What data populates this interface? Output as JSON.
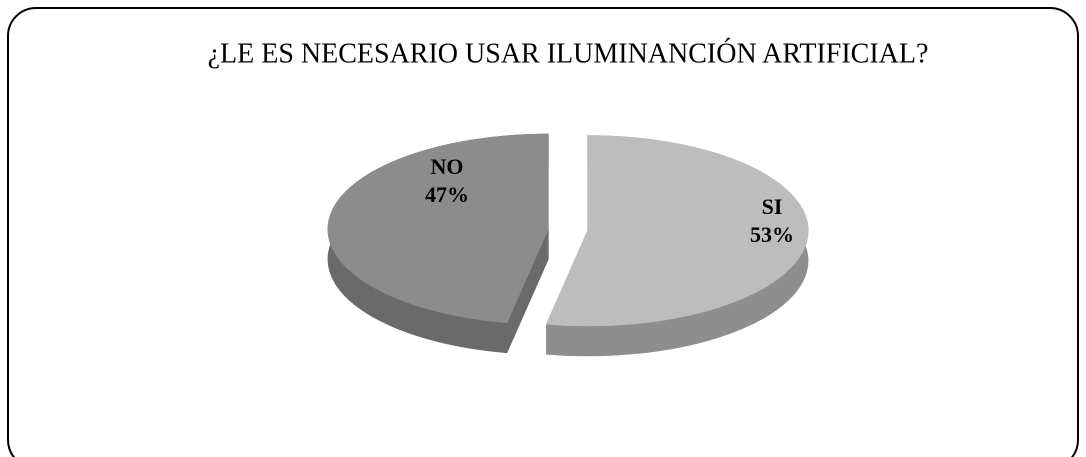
{
  "chart_data": {
    "type": "pie",
    "title": "¿LE ES NECESARIO USAR ILUMINANCIÓN ARTIFICIAL?",
    "categories": [
      "SI",
      "NO"
    ],
    "values": [
      53,
      47
    ],
    "value_labels": [
      "53%",
      "47%"
    ],
    "colors": [
      "#bdbdbd",
      "#8c8c8c"
    ],
    "side_colors": [
      "#8e8e8e",
      "#6a6a6a"
    ]
  }
}
